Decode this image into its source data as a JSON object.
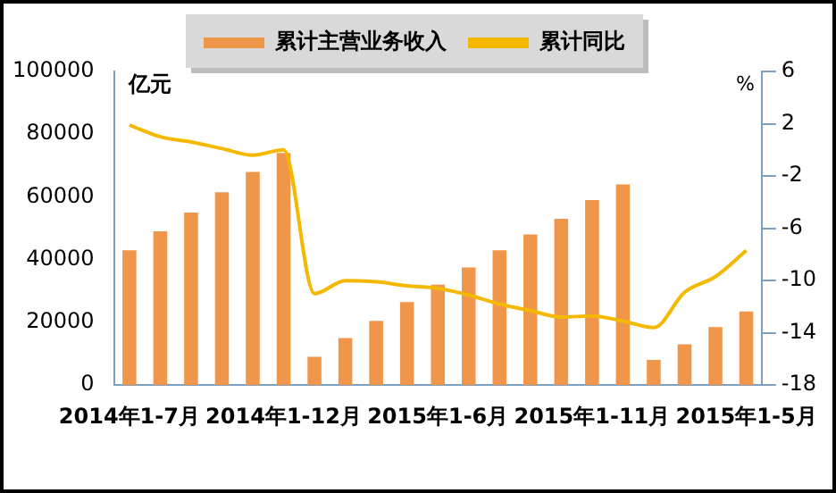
{
  "chart_data": {
    "type": "bar",
    "categories": [
      "2014年1-7月",
      null,
      null,
      null,
      null,
      "2014年1-12月",
      null,
      null,
      null,
      null,
      "2015年1-6月",
      null,
      null,
      null,
      null,
      "2015年1-11月",
      null,
      null,
      null,
      null,
      "2015年1-5月"
    ],
    "series": [
      {
        "name": "累计主营业务收入",
        "color": "#f0964a",
        "values": [
          43000,
          49000,
          55000,
          61500,
          68000,
          74000,
          9000,
          15000,
          20500,
          26500,
          32000,
          37500,
          43000,
          48000,
          53000,
          59000,
          64000,
          8000,
          13000,
          18500,
          23500
        ]
      },
      {
        "name": "累计同比",
        "type": "line",
        "axis": "y2",
        "color": "#f5b800",
        "values": [
          1.9,
          1.0,
          0.6,
          0.1,
          -0.4,
          0.0,
          -11.0,
          -10.0,
          -10.1,
          -10.4,
          -10.6,
          -11.1,
          -11.8,
          -12.3,
          -12.8,
          -12.7,
          -13.1,
          -13.6,
          -10.9,
          -9.7,
          -7.7
        ]
      }
    ],
    "ylabel": "亿元",
    "y2label": "%",
    "ylim": [
      0,
      100000
    ],
    "yticks": [
      0,
      20000,
      40000,
      60000,
      80000,
      100000
    ],
    "y2lim": [
      -18,
      6
    ],
    "y2ticks": [
      -18,
      -14,
      -10,
      -6,
      -2,
      2,
      6
    ],
    "grid": false,
    "legend": "top",
    "marker": "none",
    "line_style": "solid"
  }
}
